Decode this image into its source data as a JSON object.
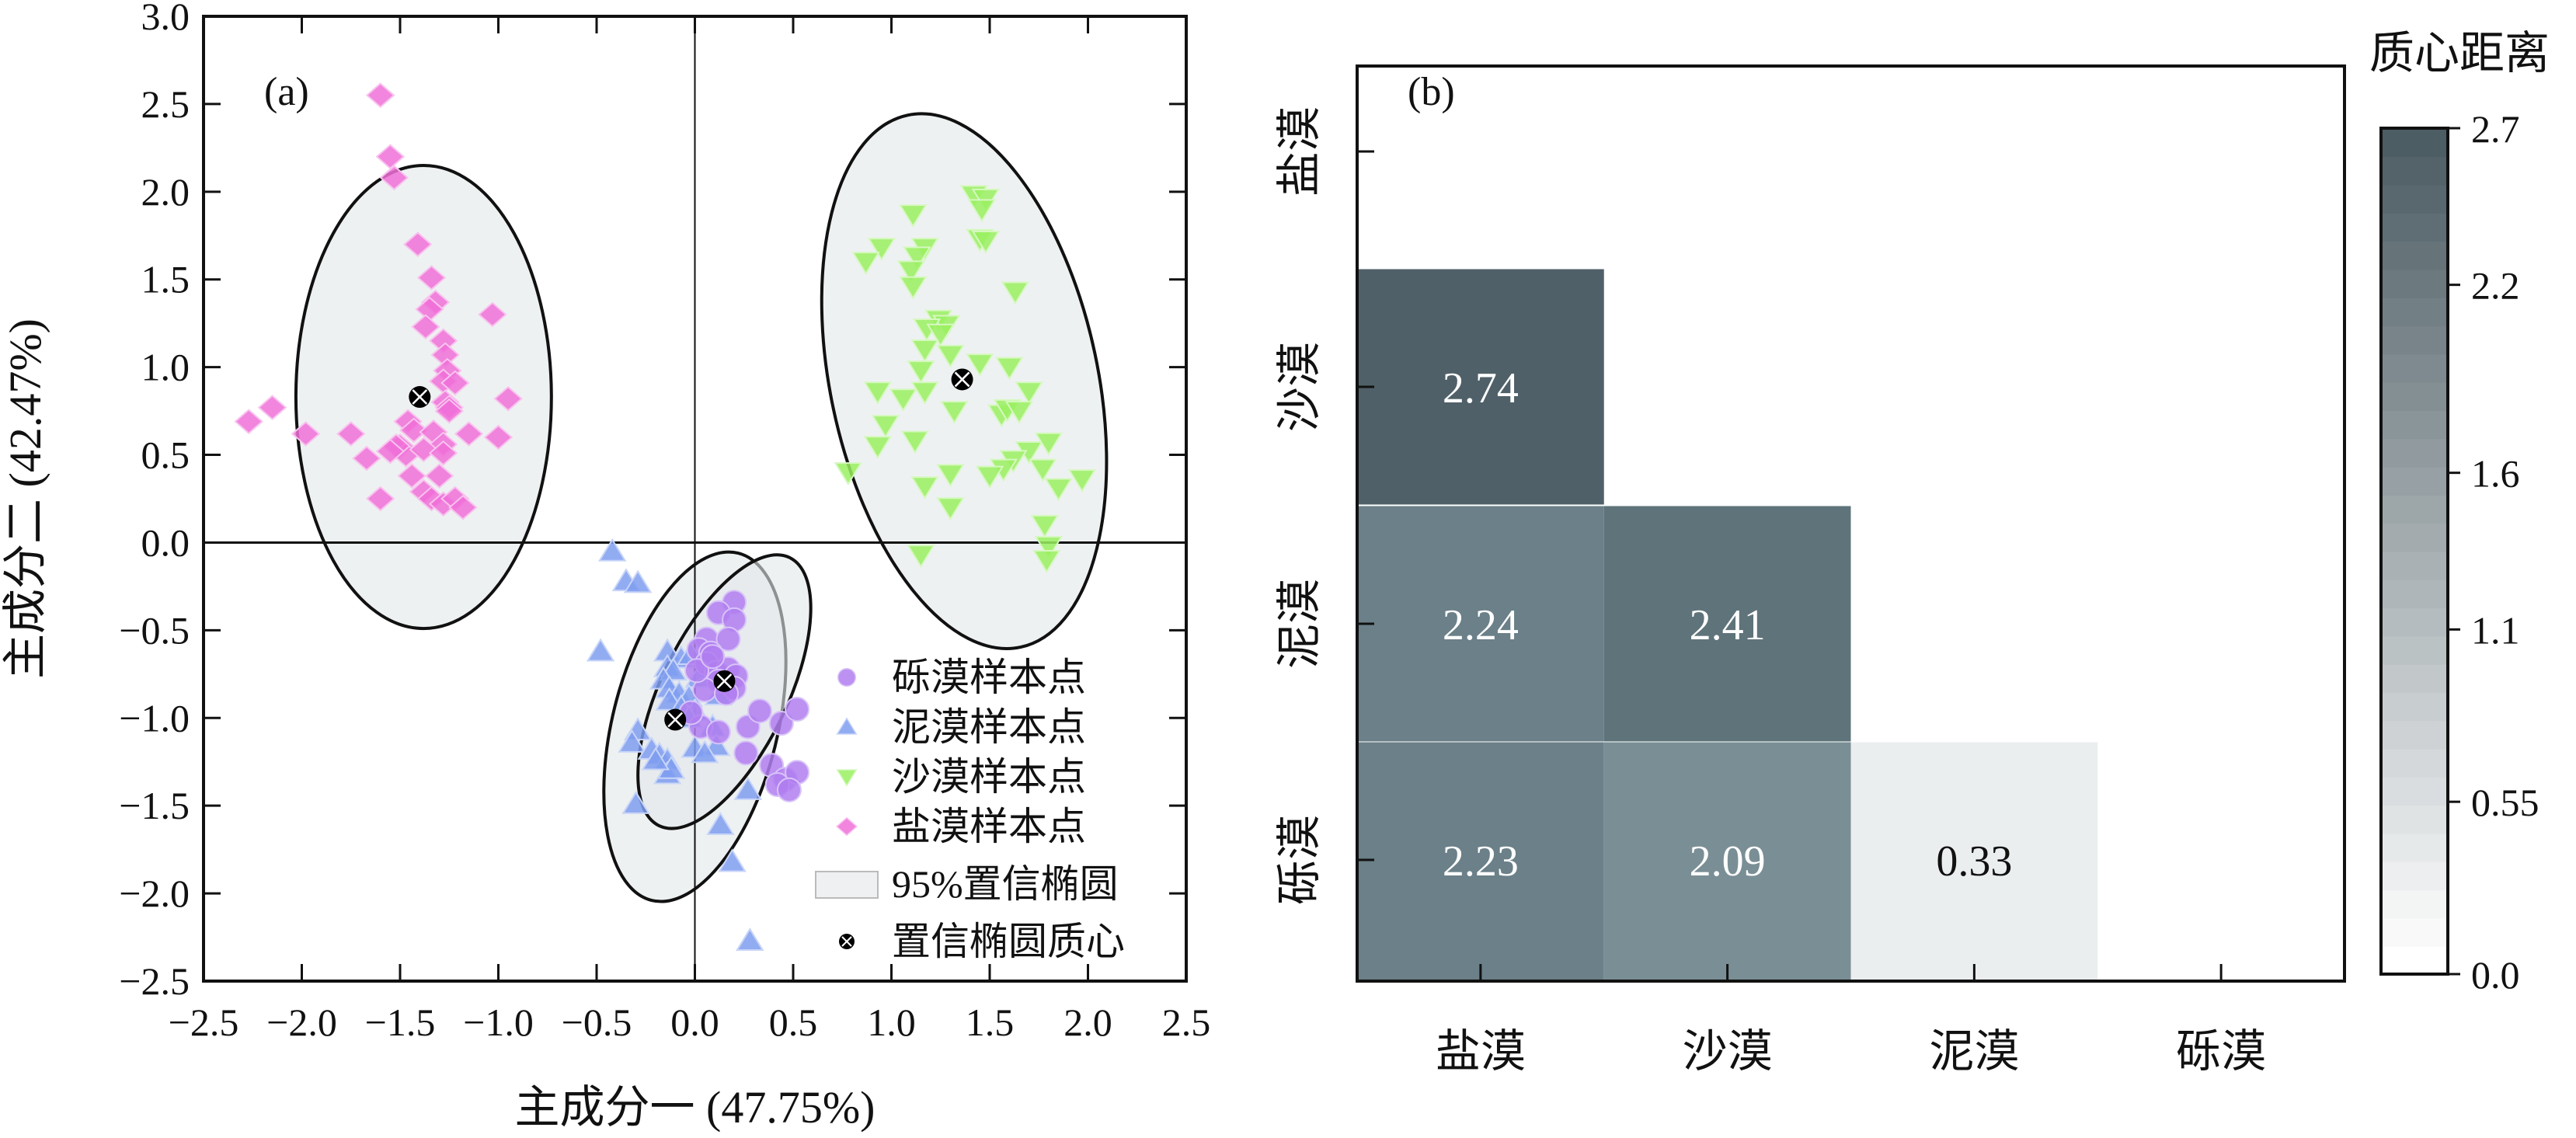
{
  "chart_data": [
    {
      "type": "scatter",
      "panel_label": "(a)",
      "xlabel": "主成分一 (47.75%)",
      "ylabel": "主成分二 (42.47%)",
      "xlim": [
        -2.5,
        2.5
      ],
      "ylim": [
        -2.5,
        3.0
      ],
      "xticks": [
        "-2.5",
        "-2.0",
        "-1.5",
        "-1.0",
        "-0.5",
        "0.0",
        "0.5",
        "1.0",
        "1.5",
        "2.0",
        "2.5"
      ],
      "yticks": [
        "3.0",
        "2.5",
        "2.0",
        "1.5",
        "1.0",
        "0.5",
        "0.0",
        "-0.5",
        "-1.0",
        "-1.5",
        "-2.0",
        "-2.5"
      ],
      "grid": false,
      "reference_lines": {
        "x": 0,
        "y": 0
      },
      "legend_position": "bottom-right",
      "legend": [
        {
          "label": "砾漠样本点",
          "marker": "circle",
          "color": "#b07ef0"
        },
        {
          "label": "泥漠样本点",
          "marker": "triangle-up",
          "color": "#7f9ef0"
        },
        {
          "label": "沙漠样本点",
          "marker": "triangle-down",
          "color": "#99f060"
        },
        {
          "label": "盐漠样本点",
          "marker": "diamond",
          "color": "#f070d8"
        },
        {
          "label": "95%置信椭圆",
          "marker": "rect",
          "color": "#eef0f1"
        },
        {
          "label": "置信椭圆质心",
          "marker": "centroid",
          "color": "#000000"
        }
      ],
      "series": [
        {
          "name": "盐漠样本点",
          "marker": "diamond",
          "color": "#f070d8",
          "centroid": [
            -1.4,
            0.83
          ],
          "ellipse": {
            "cx": -1.38,
            "cy": 0.83,
            "rx": 0.65,
            "ry": 1.32,
            "angle_deg": 0
          },
          "points": [
            [
              -1.6,
              2.55
            ],
            [
              -1.55,
              2.2
            ],
            [
              -1.53,
              2.08
            ],
            [
              -1.41,
              1.7
            ],
            [
              -1.34,
              1.51
            ],
            [
              -1.32,
              1.37
            ],
            [
              -1.35,
              1.33
            ],
            [
              -1.03,
              1.3
            ],
            [
              -1.37,
              1.23
            ],
            [
              -1.28,
              1.15
            ],
            [
              -1.27,
              1.07
            ],
            [
              -1.26,
              0.98
            ],
            [
              -1.28,
              0.92
            ],
            [
              -1.22,
              0.91
            ],
            [
              -0.95,
              0.82
            ],
            [
              -1.27,
              0.8
            ],
            [
              -1.25,
              0.77
            ],
            [
              -1.25,
              0.75
            ],
            [
              -2.27,
              0.69
            ],
            [
              -2.15,
              0.77
            ],
            [
              -1.98,
              0.62
            ],
            [
              -1.75,
              0.62
            ],
            [
              -1.46,
              0.69
            ],
            [
              -1.43,
              0.64
            ],
            [
              -1.33,
              0.63
            ],
            [
              -1.28,
              0.56
            ],
            [
              -1.15,
              0.62
            ],
            [
              -1.0,
              0.6
            ],
            [
              -1.67,
              0.48
            ],
            [
              -1.5,
              0.55
            ],
            [
              -1.47,
              0.5
            ],
            [
              -1.38,
              0.53
            ],
            [
              -1.28,
              0.51
            ],
            [
              -1.44,
              0.38
            ],
            [
              -1.38,
              0.29
            ],
            [
              -1.3,
              0.38
            ],
            [
              -1.34,
              0.25
            ],
            [
              -1.28,
              0.22
            ],
            [
              -1.22,
              0.25
            ],
            [
              -1.18,
              0.2
            ],
            [
              -1.6,
              0.25
            ],
            [
              -1.52,
              0.55
            ],
            [
              -1.55,
              0.52
            ]
          ]
        },
        {
          "name": "沙漠样本点",
          "marker": "triangle-down",
          "color": "#99f060",
          "centroid": [
            1.36,
            0.93
          ],
          "ellipse": {
            "cx": 1.37,
            "cy": 0.92,
            "rx": 0.68,
            "ry": 1.55,
            "angle_deg": 12
          },
          "points": [
            [
              1.42,
              1.98
            ],
            [
              1.48,
              1.96
            ],
            [
              1.46,
              1.9
            ],
            [
              1.11,
              1.87
            ],
            [
              1.45,
              1.73
            ],
            [
              1.48,
              1.72
            ],
            [
              0.95,
              1.68
            ],
            [
              1.17,
              1.68
            ],
            [
              1.13,
              1.63
            ],
            [
              0.87,
              1.6
            ],
            [
              1.1,
              1.55
            ],
            [
              1.11,
              1.46
            ],
            [
              1.63,
              1.43
            ],
            [
              1.24,
              1.27
            ],
            [
              1.28,
              1.24
            ],
            [
              1.18,
              1.22
            ],
            [
              1.25,
              1.19
            ],
            [
              1.17,
              1.1
            ],
            [
              1.3,
              1.07
            ],
            [
              1.45,
              1.02
            ],
            [
              1.6,
              1.0
            ],
            [
              1.15,
              0.98
            ],
            [
              0.93,
              0.86
            ],
            [
              1.06,
              0.82
            ],
            [
              1.17,
              0.86
            ],
            [
              1.7,
              0.86
            ],
            [
              1.32,
              0.75
            ],
            [
              1.56,
              0.73
            ],
            [
              1.59,
              0.76
            ],
            [
              1.65,
              0.75
            ],
            [
              0.97,
              0.67
            ],
            [
              0.93,
              0.55
            ],
            [
              1.12,
              0.58
            ],
            [
              1.7,
              0.52
            ],
            [
              1.8,
              0.57
            ],
            [
              1.62,
              0.47
            ],
            [
              1.57,
              0.42
            ],
            [
              1.5,
              0.38
            ],
            [
              1.77,
              0.42
            ],
            [
              1.97,
              0.36
            ],
            [
              0.78,
              0.4
            ],
            [
              1.3,
              0.39
            ],
            [
              1.17,
              0.32
            ],
            [
              1.85,
              0.31
            ],
            [
              1.3,
              0.2
            ],
            [
              1.78,
              0.1
            ],
            [
              1.15,
              -0.07
            ],
            [
              1.8,
              -0.02
            ],
            [
              1.79,
              -0.1
            ]
          ]
        },
        {
          "name": "泥漠样本点",
          "marker": "triangle-up",
          "color": "#7f9ef0",
          "centroid": [
            -0.1,
            -1.01
          ],
          "ellipse": {
            "cx": 0.0,
            "cy": -1.05,
            "rx": 0.42,
            "ry": 1.02,
            "angle_deg": -14
          },
          "points": [
            [
              -0.42,
              -0.05
            ],
            [
              -0.35,
              -0.22
            ],
            [
              -0.29,
              -0.23
            ],
            [
              -0.48,
              -0.62
            ],
            [
              -0.14,
              -0.62
            ],
            [
              -0.07,
              -0.66
            ],
            [
              -0.02,
              -0.64
            ],
            [
              0.02,
              -0.77
            ],
            [
              -0.14,
              -0.71
            ],
            [
              -0.11,
              -0.73
            ],
            [
              -0.16,
              -0.78
            ],
            [
              -0.13,
              -0.83
            ],
            [
              -0.08,
              -0.86
            ],
            [
              -0.03,
              -0.88
            ],
            [
              0.12,
              -0.87
            ],
            [
              -0.13,
              -0.9
            ],
            [
              -0.07,
              -0.94
            ],
            [
              0.0,
              -0.96
            ],
            [
              -0.03,
              -1.0
            ],
            [
              0.09,
              -1.05
            ],
            [
              -0.29,
              -1.07
            ],
            [
              -0.32,
              -1.14
            ],
            [
              -0.22,
              -1.18
            ],
            [
              -0.18,
              -1.21
            ],
            [
              -0.14,
              -1.24
            ],
            [
              -0.14,
              -1.32
            ],
            [
              0.0,
              -1.17
            ],
            [
              0.11,
              -1.16
            ],
            [
              0.05,
              -1.2
            ],
            [
              0.27,
              -1.41
            ],
            [
              -0.3,
              -1.49
            ],
            [
              0.13,
              -1.61
            ],
            [
              0.19,
              -1.82
            ],
            [
              0.28,
              -2.27
            ],
            [
              -0.12,
              -1.29
            ],
            [
              -0.2,
              -1.24
            ]
          ]
        },
        {
          "name": "砾漠样本点",
          "marker": "circle",
          "color": "#b07ef0",
          "centroid": [
            0.15,
            -0.79
          ],
          "ellipse": {
            "cx": 0.15,
            "cy": -0.85,
            "rx": 0.32,
            "ry": 0.85,
            "angle_deg": -26
          },
          "points": [
            [
              0.2,
              -0.34
            ],
            [
              0.12,
              -0.4
            ],
            [
              0.2,
              -0.44
            ],
            [
              0.06,
              -0.55
            ],
            [
              0.17,
              -0.55
            ],
            [
              0.02,
              -0.61
            ],
            [
              0.08,
              -0.63
            ],
            [
              0.06,
              -0.69
            ],
            [
              0.11,
              -0.74
            ],
            [
              0.17,
              -0.72
            ],
            [
              0.21,
              -0.76
            ],
            [
              0.12,
              -0.79
            ],
            [
              0.2,
              -0.83
            ],
            [
              0.05,
              -0.84
            ],
            [
              0.16,
              -0.86
            ],
            [
              0.03,
              -1.05
            ],
            [
              -0.02,
              -0.97
            ],
            [
              0.12,
              -1.08
            ],
            [
              0.27,
              -1.05
            ],
            [
              0.33,
              -0.96
            ],
            [
              0.44,
              -1.03
            ],
            [
              0.52,
              -0.95
            ],
            [
              0.26,
              -1.2
            ],
            [
              0.39,
              -1.27
            ],
            [
              0.46,
              -1.35
            ],
            [
              0.52,
              -1.31
            ],
            [
              0.42,
              -1.38
            ],
            [
              0.48,
              -1.41
            ],
            [
              0.01,
              -0.73
            ],
            [
              0.09,
              -0.65
            ]
          ]
        }
      ]
    },
    {
      "type": "heatmap",
      "panel_label": "(b)",
      "title": "",
      "xlabel": "",
      "ylabel": "",
      "row_labels": [
        "盐漠",
        "沙漠",
        "泥漠",
        "砾漠"
      ],
      "col_labels": [
        "盐漠",
        "沙漠",
        "泥漠",
        "砾漠"
      ],
      "cells": [
        {
          "row": "沙漠",
          "col": "盐漠",
          "value": 2.74,
          "color": "#4f6068",
          "text_color": "#ffffff"
        },
        {
          "row": "泥漠",
          "col": "盐漠",
          "value": 2.24,
          "color": "#6b8088",
          "text_color": "#ffffff"
        },
        {
          "row": "泥漠",
          "col": "沙漠",
          "value": 2.41,
          "color": "#5f747a",
          "text_color": "#ffffff"
        },
        {
          "row": "砾漠",
          "col": "盐漠",
          "value": 2.23,
          "color": "#6b8088",
          "text_color": "#ffffff"
        },
        {
          "row": "砾漠",
          "col": "沙漠",
          "value": 2.09,
          "color": "#7a8f95",
          "text_color": "#ffffff"
        },
        {
          "row": "砾漠",
          "col": "泥漠",
          "value": 0.33,
          "color": "#ebeeef",
          "text_color": "#111111"
        }
      ],
      "colorbar": {
        "title": "质心距离",
        "range": [
          0.0,
          2.7
        ],
        "ticks": [
          "2.7",
          "2.2",
          "1.6",
          "1.1",
          "0.55",
          "0.0"
        ],
        "tick_values": [
          2.7,
          2.2,
          1.6,
          1.1,
          0.55,
          0.0
        ],
        "color_low": "#ffffff",
        "color_high": "#4d5d64"
      }
    }
  ]
}
